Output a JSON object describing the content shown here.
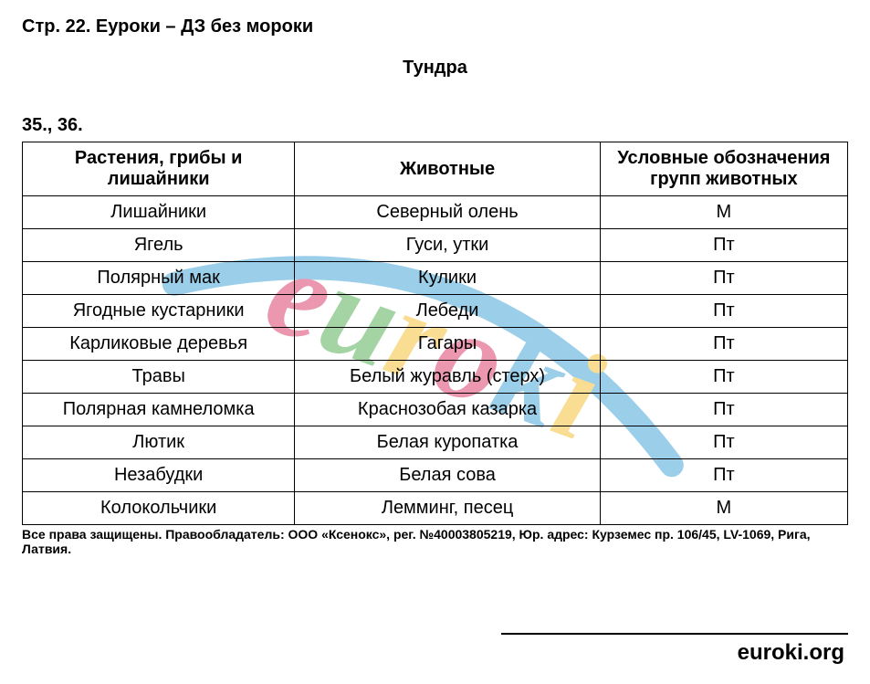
{
  "page_header": "Стр. 22. Еуроки – ДЗ без мороки",
  "title": "Тундра",
  "exercise_label": "35., 36.",
  "table": {
    "columns": [
      "Растения, грибы и лишайники",
      "Животные",
      "Условные обозначения групп животных"
    ],
    "column_widths": [
      "33%",
      "37%",
      "30%"
    ],
    "header_fontsize": 20,
    "cell_fontsize": 20,
    "border_color": "#000000",
    "rows": [
      [
        "Лишайники",
        "Северный олень",
        "М"
      ],
      [
        "Ягель",
        "Гуси, утки",
        "Пт"
      ],
      [
        "Полярный мак",
        "Кулики",
        "Пт"
      ],
      [
        "Ягодные кустарники",
        "Лебеди",
        "Пт"
      ],
      [
        "Карликовые деревья",
        "Гагары",
        "Пт"
      ],
      [
        "Травы",
        "Белый журавль (стерх)",
        "Пт"
      ],
      [
        "Полярная камнеломка",
        "Краснозобая казарка",
        "Пт"
      ],
      [
        "Лютик",
        "Белая куропатка",
        "Пт"
      ],
      [
        "Незабудки",
        "Белая сова",
        "Пт"
      ],
      [
        "Колокольчики",
        "Лемминг, песец",
        "М"
      ]
    ]
  },
  "copyright": "Все права защищены. Правообладатель: ООО «Ксенокс», рег. №40003805219, Юр. адрес: Курземес пр. 106/45, LV-1069, Рига, Латвия.",
  "footer_url": "euroki.org",
  "watermark": {
    "text": "euroki",
    "font_family": "cursive",
    "font_style": "italic",
    "rotation_deg": 20,
    "colors": {
      "e": "#d9436f",
      "u": "#5ab05a",
      "r": "#f5c23b",
      "o1": "#d9436f",
      "k": "#4aa8d8",
      "i": "#f5c23b"
    },
    "arc_color": "#4aa8d8",
    "arc_width": 26,
    "font_size": 140,
    "opacity": 0.55
  },
  "colors": {
    "background": "#ffffff",
    "text": "#000000"
  }
}
